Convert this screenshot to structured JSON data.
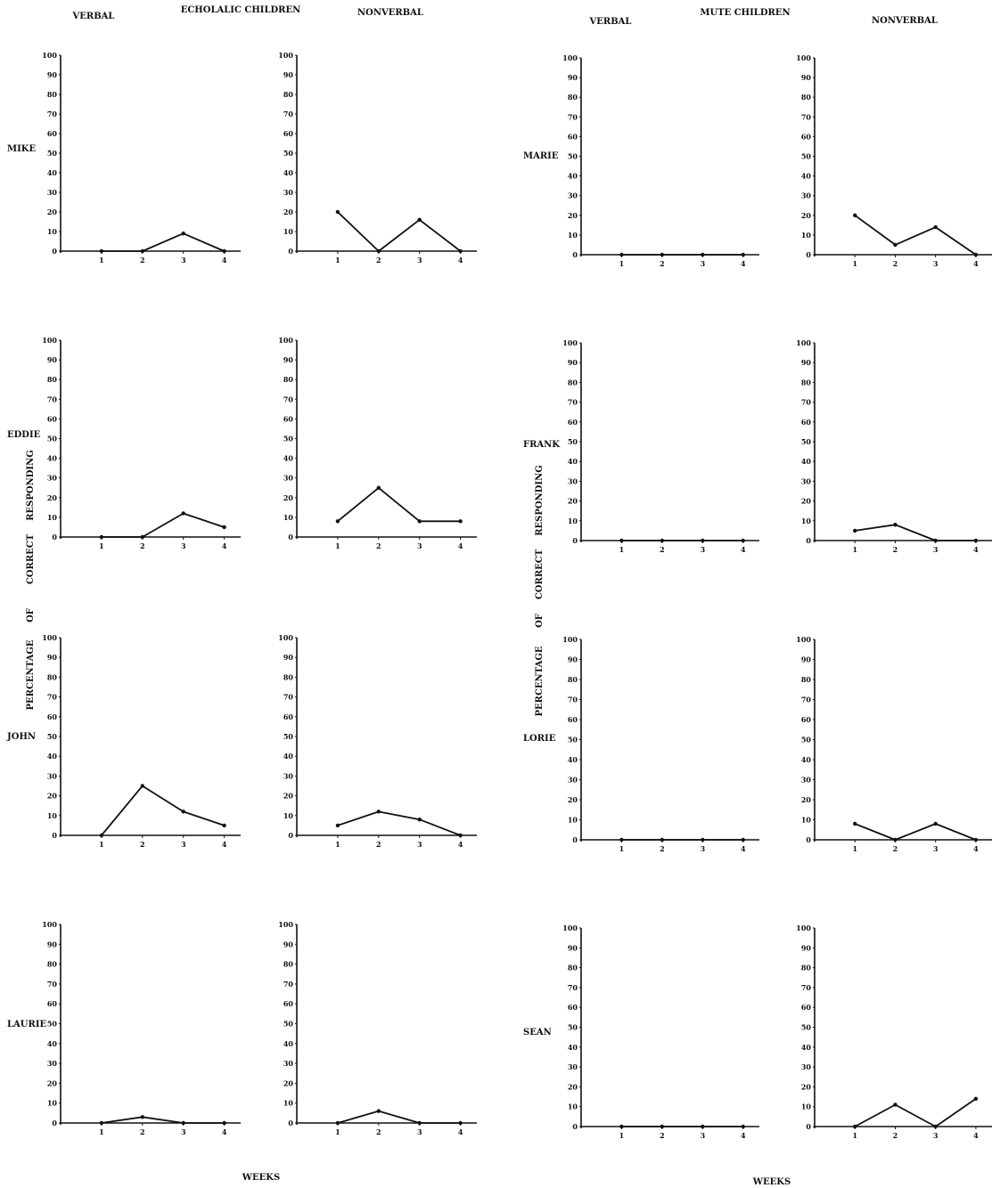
{
  "panels": {
    "echolalic": {
      "heading": "ECHOLALIC CHILDREN",
      "col_verbal": "VERBAL",
      "col_nonverbal": "NONVERBAL",
      "children": [
        "MIKE",
        "EDDIE",
        "JOHN",
        "LAURIE"
      ],
      "y_title": [
        "PERCENTAGE",
        "OF",
        "CORRECT",
        "RESPONDING"
      ],
      "x_title": "WEEKS"
    },
    "mute": {
      "heading": "MUTE CHILDREN",
      "col_verbal": "VERBAL",
      "col_nonverbal": "NONVERBAL",
      "children": [
        "MARIE",
        "FRANK",
        "LORIE",
        "SEAN"
      ],
      "y_title": [
        "PERCENTAGE",
        "OF",
        "CORRECT",
        "RESPONDING"
      ],
      "x_title": "WEEKS"
    }
  },
  "chart_data": [
    {
      "type": "line",
      "group": "ECHOLALIC CHILDREN",
      "child": "MIKE",
      "condition": "VERBAL",
      "x": [
        1,
        2,
        3,
        4
      ],
      "y": [
        0,
        0,
        9,
        0
      ],
      "ylim": [
        0,
        100
      ],
      "yticks": [
        0,
        10,
        20,
        30,
        40,
        50,
        60,
        70,
        80,
        90,
        100
      ],
      "xlabel": "WEEKS",
      "ylabel": "PERCENTAGE OF CORRECT RESPONDING"
    },
    {
      "type": "line",
      "group": "ECHOLALIC CHILDREN",
      "child": "MIKE",
      "condition": "NONVERBAL",
      "x": [
        1,
        2,
        3,
        4
      ],
      "y": [
        20,
        0,
        16,
        0
      ],
      "ylim": [
        0,
        100
      ],
      "yticks": [
        0,
        10,
        20,
        30,
        40,
        50,
        60,
        70,
        80,
        90,
        100
      ],
      "xlabel": "WEEKS",
      "ylabel": "PERCENTAGE OF CORRECT RESPONDING"
    },
    {
      "type": "line",
      "group": "ECHOLALIC CHILDREN",
      "child": "EDDIE",
      "condition": "VERBAL",
      "x": [
        1,
        2,
        3,
        4
      ],
      "y": [
        0,
        0,
        12,
        5
      ],
      "ylim": [
        0,
        100
      ],
      "yticks": [
        0,
        10,
        20,
        30,
        40,
        50,
        60,
        70,
        80,
        90,
        100
      ],
      "xlabel": "WEEKS",
      "ylabel": "PERCENTAGE OF CORRECT RESPONDING"
    },
    {
      "type": "line",
      "group": "ECHOLALIC CHILDREN",
      "child": "EDDIE",
      "condition": "NONVERBAL",
      "x": [
        1,
        2,
        3,
        4
      ],
      "y": [
        8,
        25,
        8,
        8
      ],
      "ylim": [
        0,
        100
      ],
      "yticks": [
        0,
        10,
        20,
        30,
        40,
        50,
        60,
        70,
        80,
        90,
        100
      ],
      "xlabel": "WEEKS",
      "ylabel": "PERCENTAGE OF CORRECT RESPONDING"
    },
    {
      "type": "line",
      "group": "ECHOLALIC CHILDREN",
      "child": "JOHN",
      "condition": "VERBAL",
      "x": [
        1,
        2,
        3,
        4
      ],
      "y": [
        0,
        25,
        12,
        5
      ],
      "ylim": [
        0,
        100
      ],
      "yticks": [
        0,
        10,
        20,
        30,
        40,
        50,
        60,
        70,
        80,
        90,
        100
      ],
      "xlabel": "WEEKS",
      "ylabel": "PERCENTAGE OF CORRECT RESPONDING"
    },
    {
      "type": "line",
      "group": "ECHOLALIC CHILDREN",
      "child": "JOHN",
      "condition": "NONVERBAL",
      "x": [
        1,
        2,
        3,
        4
      ],
      "y": [
        5,
        12,
        8,
        0
      ],
      "ylim": [
        0,
        100
      ],
      "yticks": [
        0,
        10,
        20,
        30,
        40,
        50,
        60,
        70,
        80,
        90,
        100
      ],
      "xlabel": "WEEKS",
      "ylabel": "PERCENTAGE OF CORRECT RESPONDING"
    },
    {
      "type": "line",
      "group": "ECHOLALIC CHILDREN",
      "child": "LAURIE",
      "condition": "VERBAL",
      "x": [
        1,
        2,
        3,
        4
      ],
      "y": [
        0,
        3,
        0,
        0
      ],
      "ylim": [
        0,
        100
      ],
      "yticks": [
        0,
        10,
        20,
        30,
        40,
        50,
        60,
        70,
        80,
        90,
        100
      ],
      "xlabel": "WEEKS",
      "ylabel": "PERCENTAGE OF CORRECT RESPONDING"
    },
    {
      "type": "line",
      "group": "ECHOLALIC CHILDREN",
      "child": "LAURIE",
      "condition": "NONVERBAL",
      "x": [
        1,
        2,
        3,
        4
      ],
      "y": [
        0,
        6,
        0,
        0
      ],
      "ylim": [
        0,
        100
      ],
      "yticks": [
        0,
        10,
        20,
        30,
        40,
        50,
        60,
        70,
        80,
        90,
        100
      ],
      "xlabel": "WEEKS",
      "ylabel": "PERCENTAGE OF CORRECT RESPONDING"
    },
    {
      "type": "line",
      "group": "MUTE CHILDREN",
      "child": "MARIE",
      "condition": "VERBAL",
      "x": [
        1,
        2,
        3,
        4
      ],
      "y": [
        0,
        0,
        0,
        0
      ],
      "ylim": [
        0,
        100
      ],
      "yticks": [
        0,
        10,
        20,
        30,
        40,
        50,
        60,
        70,
        80,
        90,
        100
      ],
      "xlabel": "WEEKS",
      "ylabel": "PERCENTAGE OF CORRECT RESPONDING"
    },
    {
      "type": "line",
      "group": "MUTE CHILDREN",
      "child": "MARIE",
      "condition": "NONVERBAL",
      "x": [
        1,
        2,
        3,
        4
      ],
      "y": [
        20,
        5,
        14,
        0
      ],
      "ylim": [
        0,
        100
      ],
      "yticks": [
        0,
        10,
        20,
        30,
        40,
        50,
        60,
        70,
        80,
        90,
        100
      ],
      "xlabel": "WEEKS",
      "ylabel": "PERCENTAGE OF CORRECT RESPONDING"
    },
    {
      "type": "line",
      "group": "MUTE CHILDREN",
      "child": "FRANK",
      "condition": "VERBAL",
      "x": [
        1,
        2,
        3,
        4
      ],
      "y": [
        0,
        0,
        0,
        0
      ],
      "ylim": [
        0,
        100
      ],
      "yticks": [
        0,
        10,
        20,
        30,
        40,
        50,
        60,
        70,
        80,
        90,
        100
      ],
      "xlabel": "WEEKS",
      "ylabel": "PERCENTAGE OF CORRECT RESPONDING"
    },
    {
      "type": "line",
      "group": "MUTE CHILDREN",
      "child": "FRANK",
      "condition": "NONVERBAL",
      "x": [
        1,
        2,
        3,
        4
      ],
      "y": [
        5,
        8,
        0,
        0
      ],
      "ylim": [
        0,
        100
      ],
      "yticks": [
        0,
        10,
        20,
        30,
        40,
        50,
        60,
        70,
        80,
        90,
        100
      ],
      "xlabel": "WEEKS",
      "ylabel": "PERCENTAGE OF CORRECT RESPONDING"
    },
    {
      "type": "line",
      "group": "MUTE CHILDREN",
      "child": "LORIE",
      "condition": "VERBAL",
      "x": [
        1,
        2,
        3,
        4
      ],
      "y": [
        0,
        0,
        0,
        0
      ],
      "ylim": [
        0,
        100
      ],
      "yticks": [
        0,
        10,
        20,
        30,
        40,
        50,
        60,
        70,
        80,
        90,
        100
      ],
      "xlabel": "WEEKS",
      "ylabel": "PERCENTAGE OF CORRECT RESPONDING"
    },
    {
      "type": "line",
      "group": "MUTE CHILDREN",
      "child": "LORIE",
      "condition": "NONVERBAL",
      "x": [
        1,
        2,
        3,
        4
      ],
      "y": [
        8,
        0,
        8,
        0
      ],
      "ylim": [
        0,
        100
      ],
      "yticks": [
        0,
        10,
        20,
        30,
        40,
        50,
        60,
        70,
        80,
        90,
        100
      ],
      "xlabel": "WEEKS",
      "ylabel": "PERCENTAGE OF CORRECT RESPONDING"
    },
    {
      "type": "line",
      "group": "MUTE CHILDREN",
      "child": "SEAN",
      "condition": "VERBAL",
      "x": [
        1,
        2,
        3,
        4
      ],
      "y": [
        0,
        0,
        0,
        0
      ],
      "ylim": [
        0,
        100
      ],
      "yticks": [
        0,
        10,
        20,
        30,
        40,
        50,
        60,
        70,
        80,
        90,
        100
      ],
      "xlabel": "WEEKS",
      "ylabel": "PERCENTAGE OF CORRECT RESPONDING"
    },
    {
      "type": "line",
      "group": "MUTE CHILDREN",
      "child": "SEAN",
      "condition": "NONVERBAL",
      "x": [
        1,
        2,
        3,
        4
      ],
      "y": [
        0,
        11,
        0,
        14
      ],
      "ylim": [
        0,
        100
      ],
      "yticks": [
        0,
        10,
        20,
        30,
        40,
        50,
        60,
        70,
        80,
        90,
        100
      ],
      "xlabel": "WEEKS",
      "ylabel": "PERCENTAGE OF CORRECT RESPONDING"
    }
  ]
}
